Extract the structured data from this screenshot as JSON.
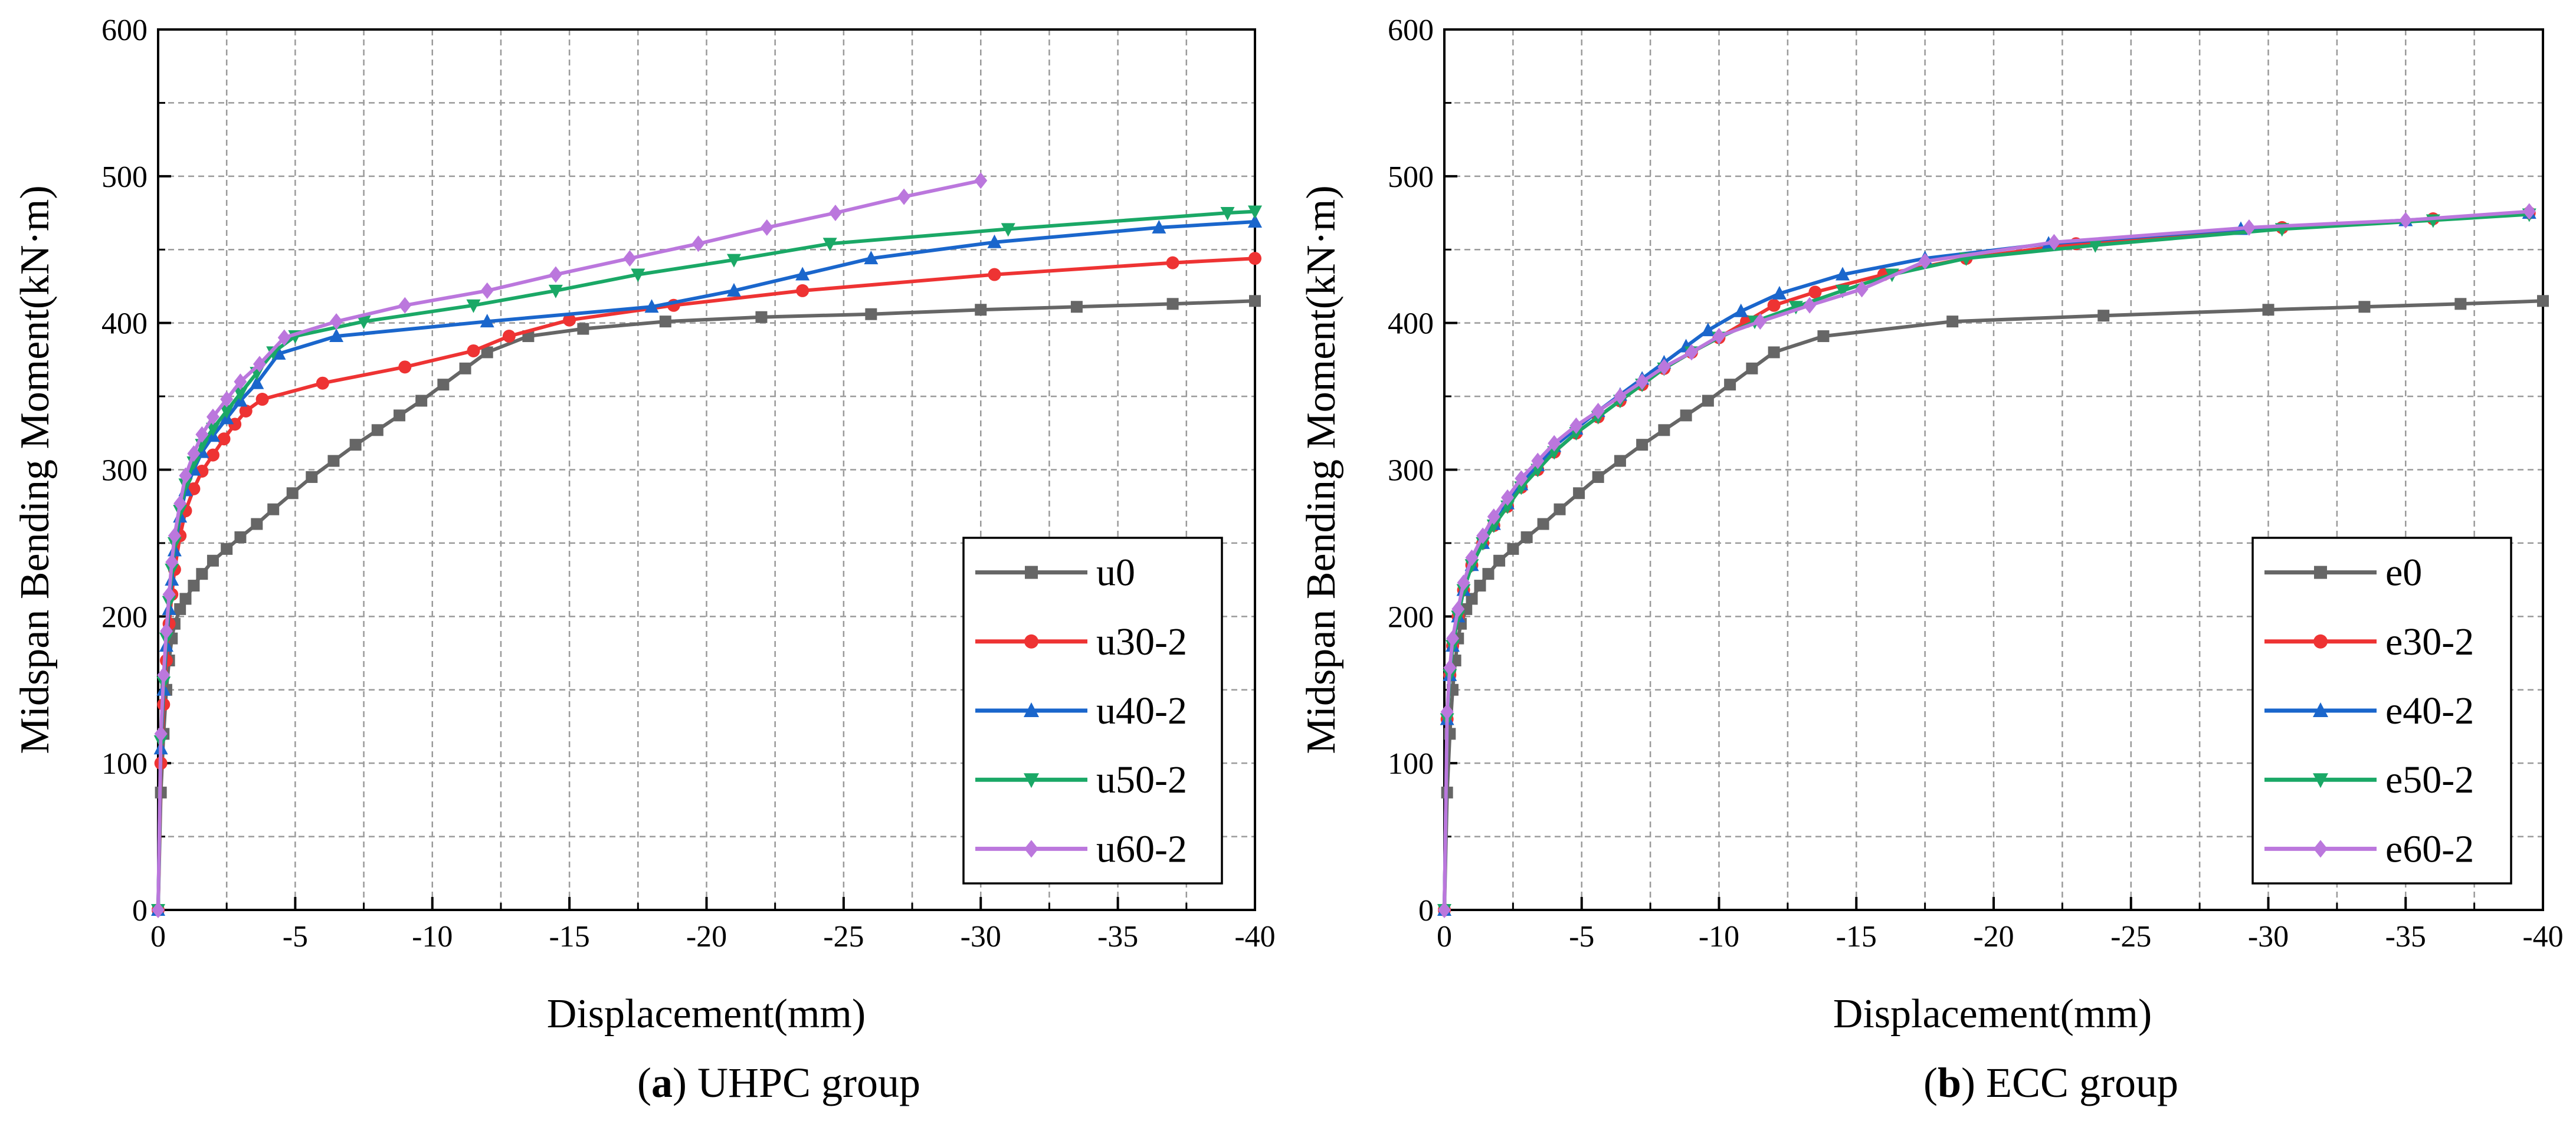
{
  "chart_data": [
    {
      "type": "line",
      "panel_label": "a",
      "caption_text": " UHPC group",
      "xlabel": "Displacement(mm)",
      "ylabel": "Midspan Bending Moment(kN·m)",
      "xlim": [
        0,
        -40
      ],
      "ylim": [
        0,
        600
      ],
      "x_ticks": [
        0,
        -5,
        -10,
        -15,
        -20,
        -25,
        -30,
        -35,
        -40
      ],
      "y_ticks": [
        0,
        100,
        200,
        300,
        400,
        500,
        600
      ],
      "grid": true,
      "legend_position": "bottom-right",
      "series": [
        {
          "name": "u0",
          "color": "#666666",
          "marker": "square",
          "x": [
            0,
            -0.1,
            -0.2,
            -0.3,
            -0.4,
            -0.5,
            -0.6,
            -0.8,
            -1.0,
            -1.3,
            -1.6,
            -2.0,
            -2.5,
            -3.0,
            -3.6,
            -4.2,
            -4.9,
            -5.6,
            -6.4,
            -7.2,
            -8.0,
            -8.8,
            -9.6,
            -10.4,
            -11.2,
            -12.0,
            -13.5,
            -15.5,
            -18.5,
            -22.0,
            -26.0,
            -30.0,
            -33.5,
            -37.0,
            -40.0
          ],
          "y": [
            0,
            80,
            120,
            150,
            170,
            185,
            195,
            205,
            212,
            221,
            229,
            238,
            246,
            254,
            263,
            273,
            284,
            295,
            306,
            317,
            327,
            337,
            347,
            358,
            369,
            380,
            391,
            396,
            401,
            404,
            406,
            409,
            411,
            413,
            415
          ]
        },
        {
          "name": "u30-2",
          "color": "#ee3333",
          "marker": "circle",
          "x": [
            0,
            -0.1,
            -0.2,
            -0.3,
            -0.4,
            -0.5,
            -0.6,
            -0.8,
            -1.0,
            -1.3,
            -1.6,
            -2.0,
            -2.4,
            -2.8,
            -3.2,
            -3.8,
            -6.0,
            -9.0,
            -11.5,
            -12.8,
            -15.0,
            -18.8,
            -23.5,
            -30.5,
            -37.0,
            -40.0
          ],
          "y": [
            0,
            100,
            140,
            170,
            195,
            215,
            232,
            255,
            272,
            287,
            299,
            310,
            321,
            331,
            340,
            348,
            359,
            370,
            381,
            391,
            402,
            412,
            422,
            433,
            441,
            444
          ]
        },
        {
          "name": "u40-2",
          "color": "#1a66cc",
          "marker": "triangle",
          "x": [
            0,
            -0.1,
            -0.2,
            -0.3,
            -0.4,
            -0.5,
            -0.6,
            -0.8,
            -1.0,
            -1.3,
            -1.6,
            -2.0,
            -2.5,
            -3.0,
            -3.6,
            -4.4,
            -6.5,
            -12.0,
            -18.0,
            -21.0,
            -23.5,
            -26.0,
            -30.5,
            -36.5,
            -40.0
          ],
          "y": [
            0,
            110,
            150,
            180,
            205,
            225,
            245,
            268,
            286,
            300,
            312,
            323,
            335,
            347,
            359,
            379,
            391,
            401,
            411,
            422,
            433,
            444,
            455,
            465,
            469
          ]
        },
        {
          "name": "u50-2",
          "color": "#1aa866",
          "marker": "triangle-down",
          "x": [
            0,
            -0.1,
            -0.2,
            -0.3,
            -0.4,
            -0.5,
            -0.6,
            -0.8,
            -1.0,
            -1.3,
            -1.6,
            -2.0,
            -2.5,
            -3.0,
            -3.6,
            -4.2,
            -5.0,
            -7.5,
            -11.5,
            -14.5,
            -17.5,
            -21.0,
            -24.5,
            -31.0,
            -39.0,
            -40.0
          ],
          "y": [
            0,
            115,
            155,
            185,
            210,
            232,
            250,
            272,
            290,
            305,
            317,
            328,
            340,
            352,
            366,
            380,
            391,
            401,
            412,
            422,
            433,
            443,
            454,
            464,
            475,
            476
          ]
        },
        {
          "name": "u60-2",
          "color": "#bb77dd",
          "marker": "diamond",
          "x": [
            0,
            -0.1,
            -0.2,
            -0.3,
            -0.4,
            -0.5,
            -0.6,
            -0.8,
            -1.0,
            -1.3,
            -1.6,
            -2.0,
            -2.5,
            -3.0,
            -3.7,
            -4.6,
            -6.5,
            -9.0,
            -12.0,
            -14.5,
            -17.2,
            -19.7,
            -22.2,
            -24.7,
            -27.2,
            -30.0
          ],
          "y": [
            0,
            120,
            160,
            190,
            215,
            237,
            255,
            277,
            296,
            311,
            324,
            336,
            348,
            360,
            372,
            390,
            401,
            412,
            422,
            433,
            444,
            454,
            465,
            475,
            486,
            497
          ]
        }
      ]
    },
    {
      "type": "line",
      "panel_label": "b",
      "caption_text": " ECC group",
      "xlabel": "Displacement(mm)",
      "ylabel": "Midspan Bending Moment(kN·m)",
      "xlim": [
        0,
        -40
      ],
      "ylim": [
        0,
        600
      ],
      "x_ticks": [
        0,
        -5,
        -10,
        -15,
        -20,
        -25,
        -30,
        -35,
        -40
      ],
      "y_ticks": [
        0,
        100,
        200,
        300,
        400,
        500,
        600
      ],
      "grid": true,
      "legend_position": "bottom-right",
      "series": [
        {
          "name": "e0",
          "color": "#666666",
          "marker": "square",
          "x": [
            0,
            -0.1,
            -0.2,
            -0.3,
            -0.4,
            -0.5,
            -0.6,
            -0.8,
            -1.0,
            -1.3,
            -1.6,
            -2.0,
            -2.5,
            -3.0,
            -3.6,
            -4.2,
            -4.9,
            -5.6,
            -6.4,
            -7.2,
            -8.0,
            -8.8,
            -9.6,
            -10.4,
            -11.2,
            -12.0,
            -13.8,
            -18.5,
            -24.0,
            -30.0,
            -33.5,
            -37.0,
            -40.0
          ],
          "y": [
            0,
            80,
            120,
            150,
            170,
            185,
            195,
            205,
            212,
            221,
            229,
            238,
            246,
            254,
            263,
            273,
            284,
            295,
            306,
            317,
            327,
            337,
            347,
            358,
            369,
            380,
            391,
            401,
            405,
            409,
            411,
            413,
            415
          ]
        },
        {
          "name": "e30-2",
          "color": "#ee3333",
          "marker": "circle",
          "x": [
            0,
            -0.1,
            -0.2,
            -0.3,
            -0.5,
            -0.7,
            -1.0,
            -1.4,
            -1.8,
            -2.3,
            -2.8,
            -3.4,
            -4.0,
            -4.8,
            -5.6,
            -6.4,
            -7.2,
            -8.0,
            -9.0,
            -10.0,
            -11.0,
            -12.0,
            -13.5,
            -16.0,
            -19.0,
            -23.0,
            -30.5,
            -36.0,
            -39.5
          ],
          "y": [
            0,
            130,
            160,
            180,
            200,
            218,
            235,
            250,
            262,
            275,
            288,
            300,
            312,
            325,
            336,
            347,
            358,
            369,
            380,
            390,
            401,
            412,
            421,
            433,
            444,
            454,
            465,
            471,
            475
          ]
        },
        {
          "name": "e40-2",
          "color": "#1a66cc",
          "marker": "triangle",
          "x": [
            0,
            -0.1,
            -0.2,
            -0.3,
            -0.5,
            -0.7,
            -1.0,
            -1.4,
            -1.8,
            -2.3,
            -2.8,
            -3.4,
            -4.0,
            -4.8,
            -5.6,
            -6.4,
            -7.2,
            -8.0,
            -8.8,
            -9.6,
            -10.8,
            -12.2,
            -14.5,
            -17.5,
            -22.0,
            -29.0,
            -35.0,
            -39.5
          ],
          "y": [
            0,
            130,
            160,
            180,
            200,
            218,
            235,
            250,
            263,
            277,
            290,
            303,
            316,
            328,
            340,
            351,
            362,
            373,
            384,
            395,
            408,
            420,
            433,
            444,
            454,
            464,
            470,
            475
          ]
        },
        {
          "name": "e50-2",
          "color": "#1aa866",
          "marker": "triangle-down",
          "x": [
            0,
            -0.1,
            -0.2,
            -0.3,
            -0.5,
            -0.7,
            -1.0,
            -1.4,
            -1.8,
            -2.3,
            -2.8,
            -3.4,
            -4.0,
            -4.8,
            -5.6,
            -6.4,
            -7.2,
            -8.0,
            -9.0,
            -10.0,
            -11.3,
            -12.8,
            -14.5,
            -16.3,
            -19.0,
            -23.7,
            -30.5,
            -36.0,
            -39.5
          ],
          "y": [
            0,
            130,
            160,
            180,
            200,
            218,
            235,
            250,
            262,
            275,
            288,
            300,
            312,
            325,
            336,
            347,
            358,
            369,
            380,
            390,
            401,
            411,
            422,
            433,
            444,
            453,
            464,
            470,
            474
          ]
        },
        {
          "name": "e60-2",
          "color": "#bb77dd",
          "marker": "diamond",
          "x": [
            0,
            -0.1,
            -0.2,
            -0.3,
            -0.5,
            -0.7,
            -1.0,
            -1.4,
            -1.8,
            -2.3,
            -2.8,
            -3.4,
            -4.0,
            -4.8,
            -5.6,
            -6.4,
            -7.2,
            -8.0,
            -9.0,
            -10.0,
            -11.5,
            -13.3,
            -15.2,
            -17.5,
            -22.2,
            -29.3,
            -35.0,
            -39.5
          ],
          "y": [
            0,
            135,
            165,
            185,
            205,
            223,
            240,
            255,
            268,
            281,
            294,
            306,
            318,
            330,
            340,
            350,
            360,
            370,
            380,
            391,
            401,
            412,
            423,
            442,
            455,
            465,
            470,
            476
          ]
        }
      ]
    }
  ]
}
